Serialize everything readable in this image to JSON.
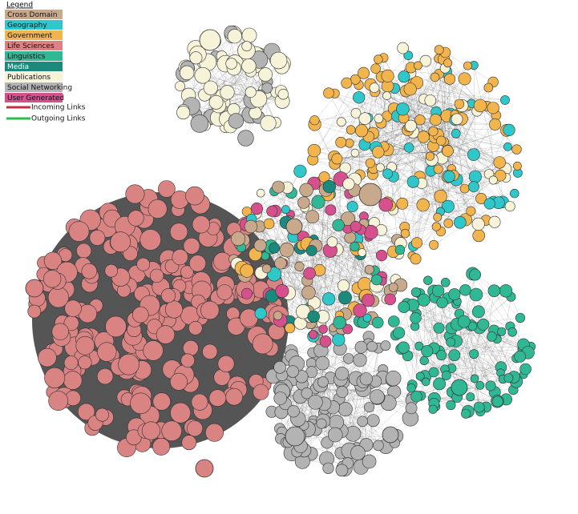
{
  "legend": {
    "title": "Legend",
    "items": [
      {
        "label": "Cross Domain",
        "color": "#c9a98c"
      },
      {
        "label": "Geography",
        "color": "#2fc7c9"
      },
      {
        "label": "Government",
        "color": "#f2b44c"
      },
      {
        "label": "Life Sciences",
        "color": "#d98383"
      },
      {
        "label": "Linguistics",
        "color": "#2fb893"
      },
      {
        "label": "Media",
        "color": "#1b8a7c"
      },
      {
        "label": "Publications",
        "color": "#f6f3d9"
      },
      {
        "label": "Social Networking",
        "color": "#b3b3b3"
      },
      {
        "label": "User Generated",
        "color": "#d6508d"
      }
    ],
    "links": [
      {
        "label": "Incoming Links",
        "color": "#c4303d"
      },
      {
        "label": "Outgoing Links",
        "color": "#2dbb4c"
      }
    ]
  }
}
